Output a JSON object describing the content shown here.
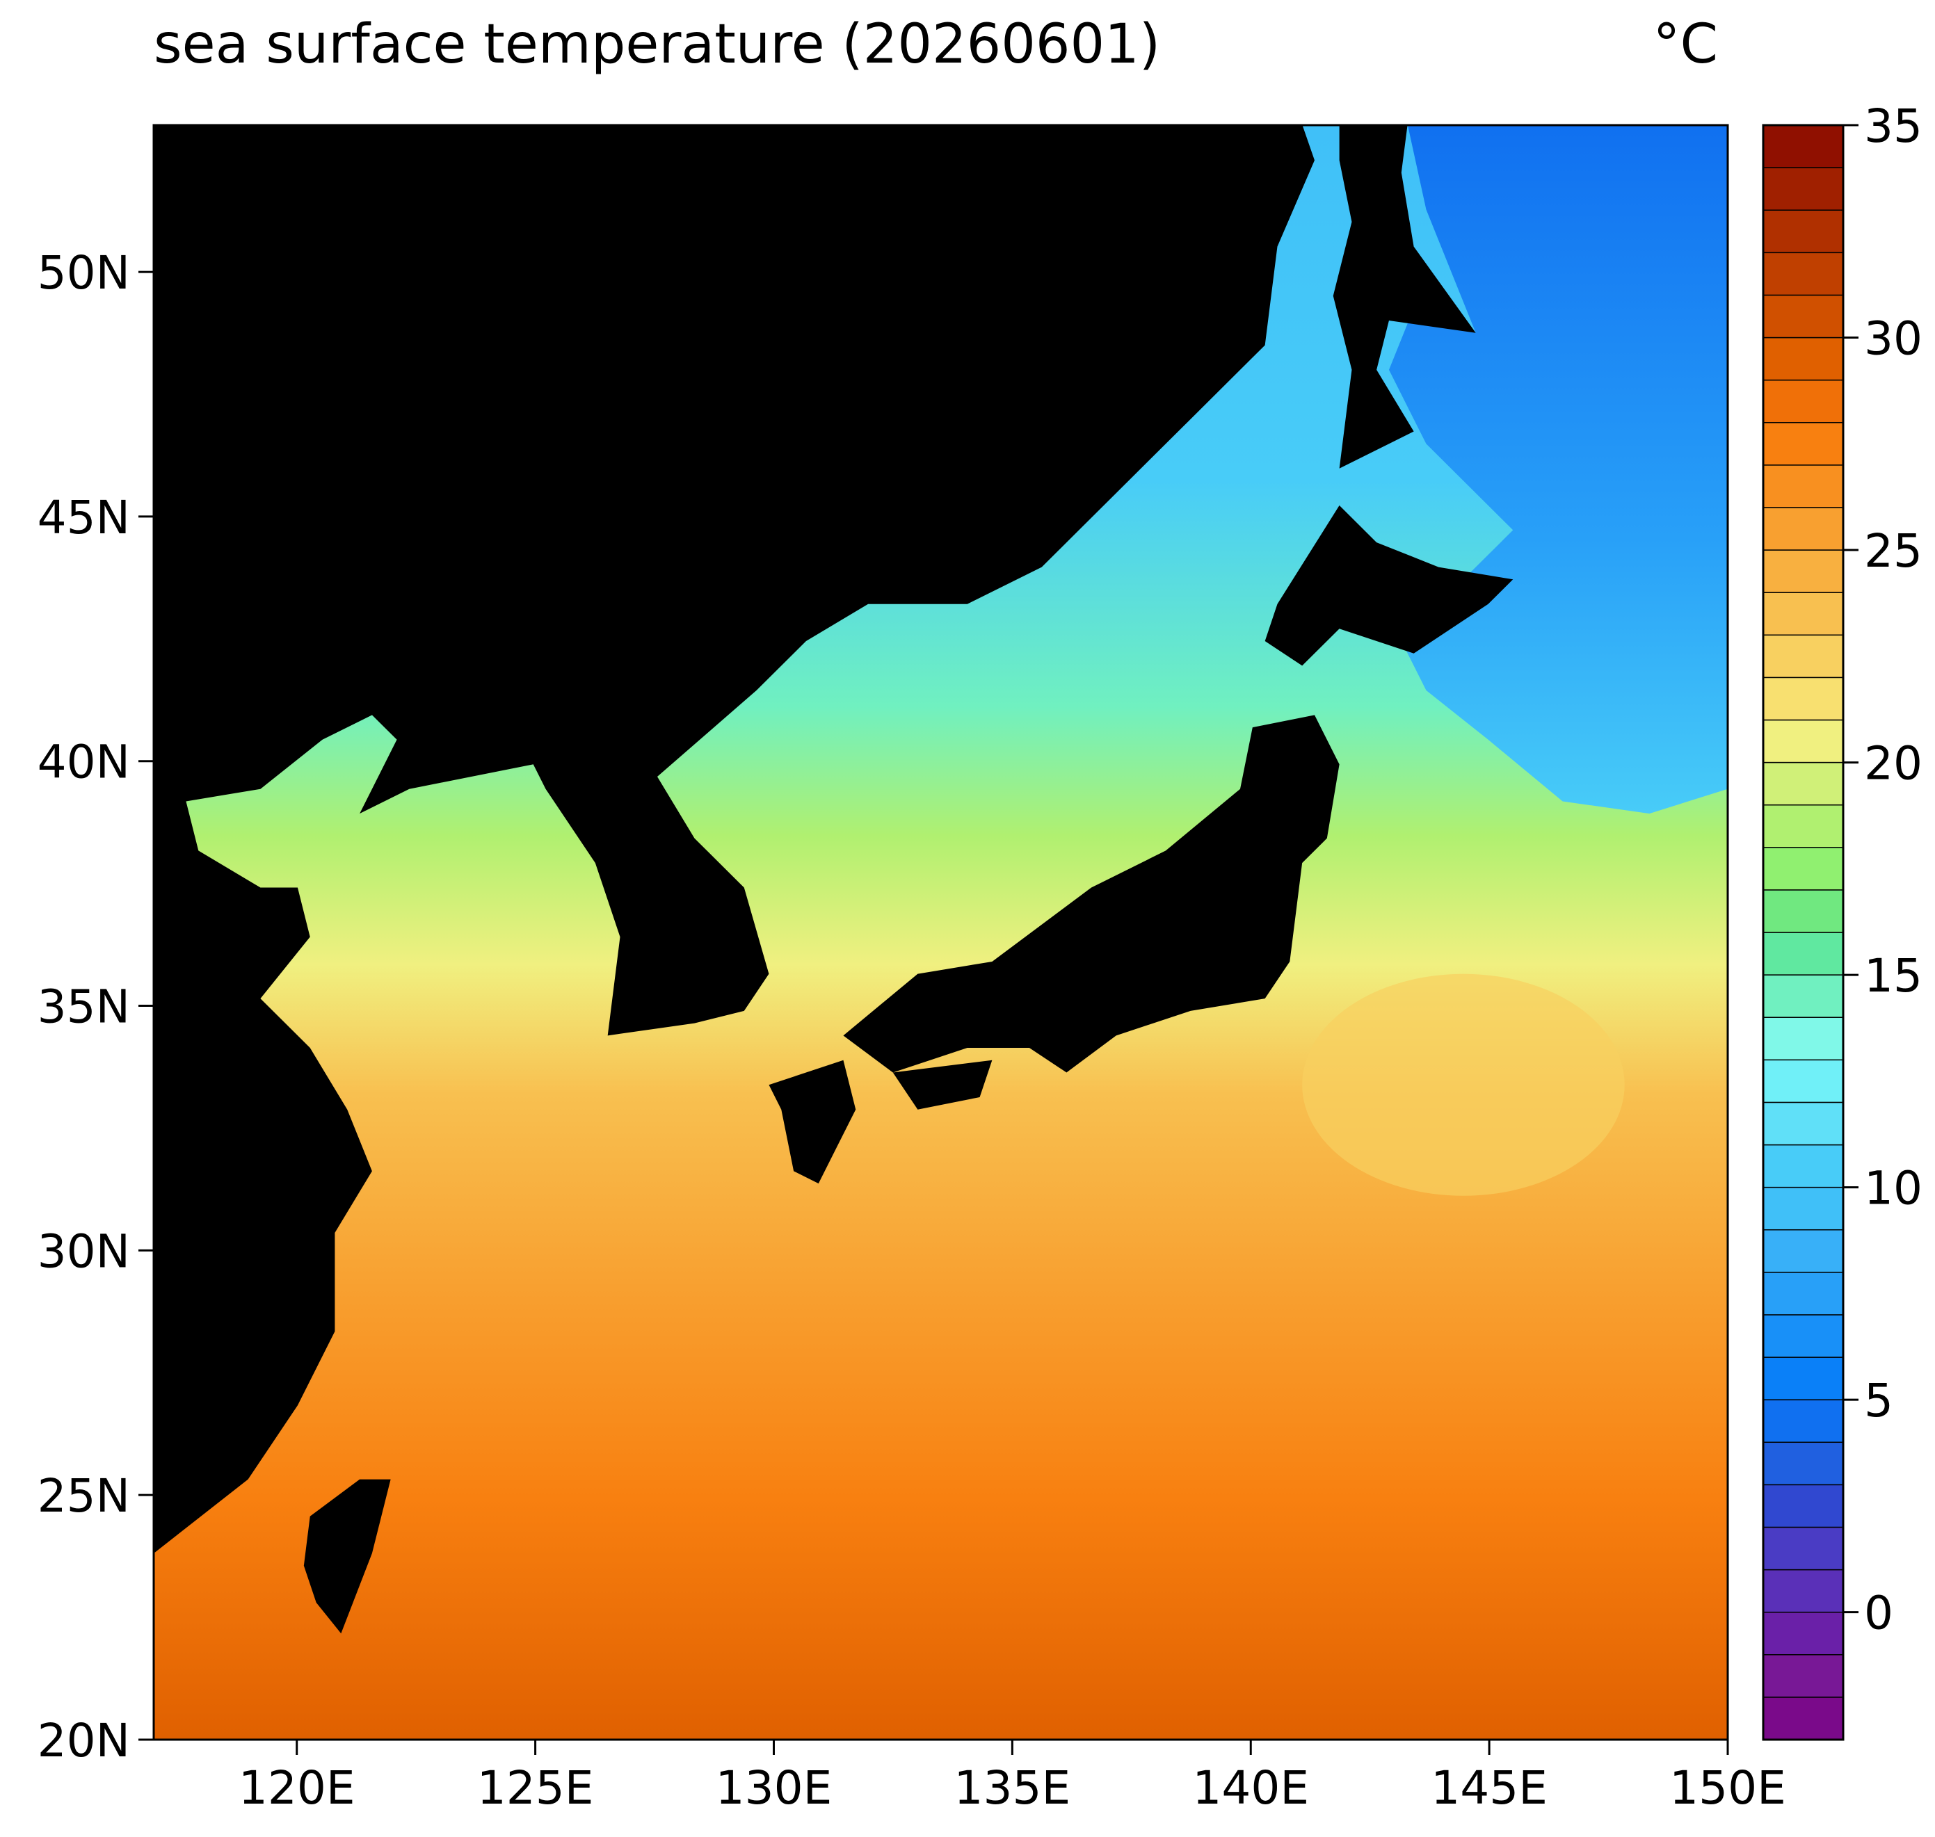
{
  "chart_data": {
    "type": "map",
    "title": "sea surface temperature (20260601)",
    "unit": "°C",
    "xlim": [
      117,
      150
    ],
    "ylim": [
      20,
      53
    ],
    "xticks": [
      {
        "value": 120,
        "label": "120E"
      },
      {
        "value": 125,
        "label": "125E"
      },
      {
        "value": 130,
        "label": "130E"
      },
      {
        "value": 135,
        "label": "135E"
      },
      {
        "value": 140,
        "label": "140E"
      },
      {
        "value": 145,
        "label": "145E"
      },
      {
        "value": 150,
        "label": "150E"
      }
    ],
    "yticks": [
      {
        "value": 20,
        "label": "20N"
      },
      {
        "value": 25,
        "label": "25N"
      },
      {
        "value": 30,
        "label": "30N"
      },
      {
        "value": 35,
        "label": "35N"
      },
      {
        "value": 40,
        "label": "40N"
      },
      {
        "value": 45,
        "label": "45N"
      },
      {
        "value": 50,
        "label": "50N"
      }
    ],
    "colorbar": {
      "lim": [
        -3,
        35
      ],
      "ticks": [
        0,
        5,
        10,
        15,
        20,
        25,
        30,
        35
      ],
      "levels": [
        -3,
        -2,
        -1,
        0,
        1,
        2,
        3,
        4,
        5,
        6,
        7,
        8,
        9,
        10,
        11,
        12,
        13,
        14,
        15,
        16,
        17,
        18,
        19,
        20,
        21,
        22,
        23,
        24,
        25,
        26,
        27,
        28,
        29,
        30,
        31,
        32,
        33,
        34,
        35
      ],
      "colors": [
        "#7a0a8a",
        "#781896",
        "#6a20a8",
        "#5a30b8",
        "#4a3cc4",
        "#3048d0",
        "#2060e0",
        "#1070f0",
        "#0a80f8",
        "#1890f8",
        "#28a0f8",
        "#38b0f8",
        "#40c0f8",
        "#48ccf8",
        "#60e0f8",
        "#70f0f8",
        "#80f8e8",
        "#70f0c0",
        "#60e8a0",
        "#70e880",
        "#90f070",
        "#b0f070",
        "#d0f078",
        "#f0f080",
        "#f8e070",
        "#f8d060",
        "#f8c050",
        "#f8b040",
        "#f8a030",
        "#f89020",
        "#f88010",
        "#f07008",
        "#e06000",
        "#d05000",
        "#c04000",
        "#b03000",
        "#a02000",
        "#901000"
      ]
    }
  }
}
